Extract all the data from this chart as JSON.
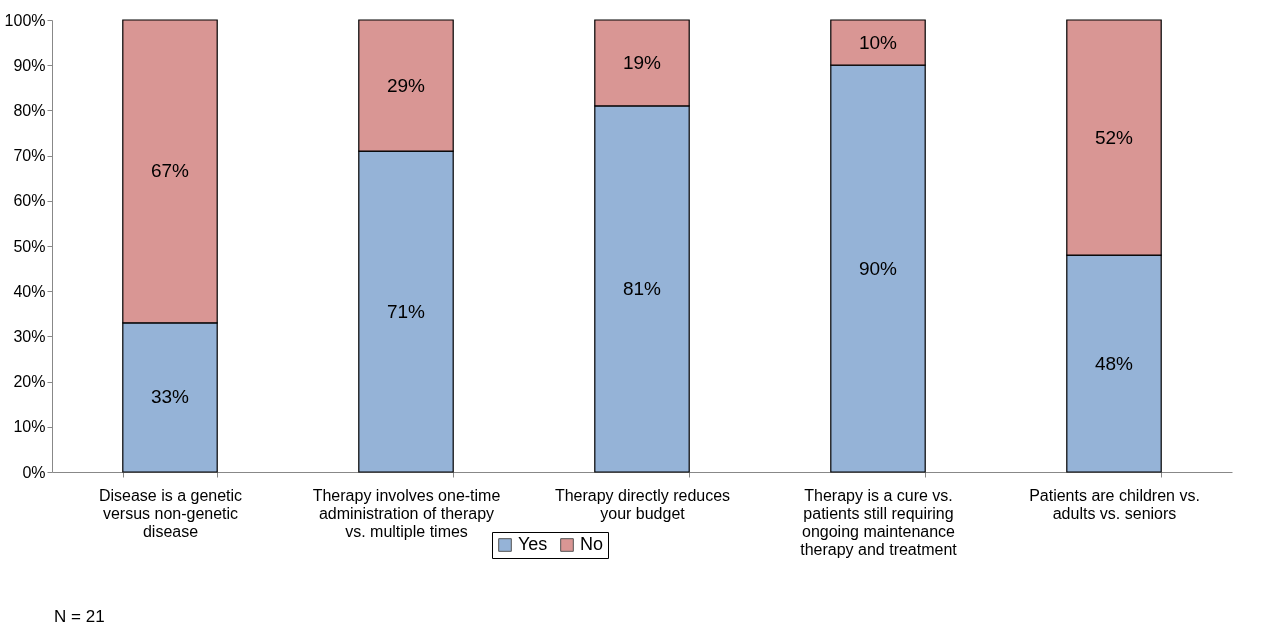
{
  "chart_data": {
    "type": "bar",
    "stacked": true,
    "categories": [
      "Disease is a genetic versus non-genetic disease",
      "Therapy involves one-time administration of therapy vs. multiple times",
      "Therapy directly reduces your budget",
      "Therapy is a cure vs. patients still requiring ongoing maintenance therapy and treatment",
      "Patients are children vs. adults vs. seniors"
    ],
    "series": [
      {
        "name": "Yes",
        "color": "#95b3d7",
        "values": [
          33,
          71,
          81,
          90,
          48
        ],
        "value_labels": [
          "33%",
          "71%",
          "81%",
          "90%",
          "48%"
        ]
      },
      {
        "name": "No",
        "color": "#d99694",
        "values": [
          67,
          29,
          19,
          10,
          52
        ],
        "value_labels": [
          "67%",
          "29%",
          "19%",
          "10%",
          "52%"
        ]
      }
    ],
    "ylim": [
      0,
      100
    ],
    "yticks": [
      {
        "value": 0,
        "label": "0%"
      },
      {
        "value": 10,
        "label": "10%"
      },
      {
        "value": 20,
        "label": "20%"
      },
      {
        "value": 30,
        "label": "30%"
      },
      {
        "value": 40,
        "label": "40%"
      },
      {
        "value": 50,
        "label": "50%"
      },
      {
        "value": 60,
        "label": "60%"
      },
      {
        "value": 70,
        "label": "70%"
      },
      {
        "value": 80,
        "label": "80%"
      },
      {
        "value": 90,
        "label": "90%"
      },
      {
        "value": 100,
        "label": "100%"
      }
    ],
    "grid": false,
    "legend": "bottom",
    "annotations": [
      "N = 21"
    ]
  }
}
